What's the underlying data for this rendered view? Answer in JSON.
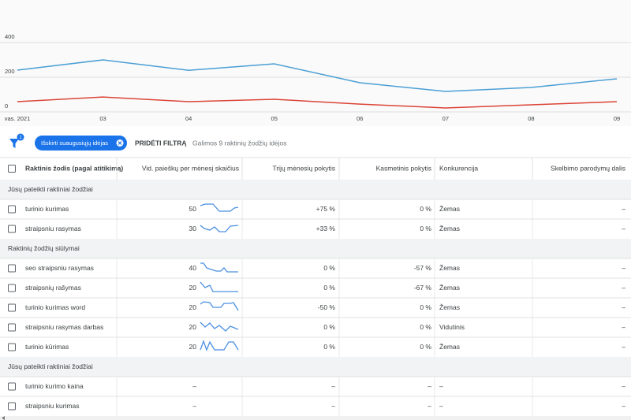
{
  "chart_data": {
    "type": "line",
    "categories": [
      "vas. 2021",
      "03",
      "04",
      "05",
      "06",
      "07",
      "08",
      "09"
    ],
    "series": [
      {
        "color": "#4b9fd5",
        "values": [
          241,
          300,
          240,
          277,
          168,
          118,
          141,
          191
        ]
      },
      {
        "color": "#db4437",
        "values": [
          59,
          86,
          59,
          73,
          45,
          23,
          41,
          59
        ]
      }
    ],
    "ylim": [
      0,
      400
    ],
    "yticks": [
      0,
      200,
      400
    ],
    "grid": true
  },
  "filter": {
    "badge": "1",
    "chip": "Išskirti suaugusiųjų idėjas",
    "add": "PRIDĖTI FILTRĄ",
    "count": "Galimos 9 raktinių žodžių idėjos"
  },
  "table": {
    "headers": [
      "Raktinis žodis (pagal atitikimą)",
      "Vid. paieškų per mėnesį skaičius",
      "Trijų mėnesių pokytis",
      "Kasmetinis pokytis",
      "Konkurencija",
      "Skelbimo parodymų dalis"
    ],
    "groups": [
      {
        "title": "Jūsų pateikti raktiniai žodžiai",
        "rows": [
          [
            "turinio kurimas",
            "50",
            "+75 %",
            "0 %",
            "Žemas",
            "–"
          ],
          [
            "straipsniu rasymas",
            "30",
            "+33 %",
            "0 %",
            "Žemas",
            "–"
          ]
        ]
      },
      {
        "title": "Raktinių žodžių siūlymai",
        "rows": [
          [
            "seo straipsniu rasymas",
            "40",
            "0 %",
            "-57 %",
            "Žemas",
            "–"
          ],
          [
            "straipsnių rašymas",
            "20",
            "0 %",
            "-67 %",
            "Žemas",
            "–"
          ],
          [
            "turinio kurimas word",
            "20",
            "-50 %",
            "0 %",
            "Žemas",
            "–"
          ],
          [
            "straipsniu rasymas darbas",
            "20",
            "0 %",
            "0 %",
            "Vidutinis",
            "–"
          ],
          [
            "turinio kūrimas",
            "20",
            "0 %",
            "0 %",
            "Žemas",
            "–"
          ]
        ]
      },
      {
        "title": "Jūsų pateikti raktiniai žodžiai",
        "rows": [
          [
            "turinio kurimo kaina",
            "–",
            "–",
            "–",
            "–",
            "–"
          ],
          [
            "straipsniu kurimas",
            "–",
            "–",
            "–",
            "–",
            "–"
          ]
        ]
      }
    ]
  }
}
